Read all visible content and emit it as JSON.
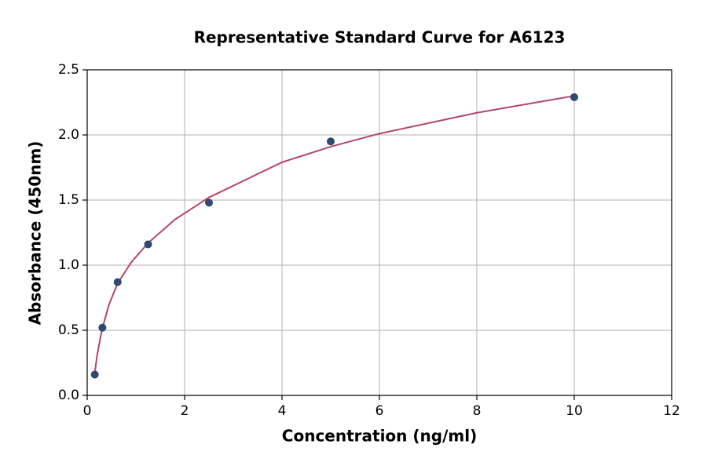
{
  "chart_data": {
    "type": "scatter",
    "title": "Representative Standard Curve for A6123",
    "x_label": "Concentration (ng/ml)",
    "y_label": "Absorbance (450nm)",
    "x": [
      0.156,
      0.3125,
      0.625,
      1.25,
      2.5,
      5,
      10
    ],
    "values": [
      0.16,
      0.52,
      0.87,
      1.16,
      1.48,
      1.95,
      2.29
    ],
    "color": "#2d4a70",
    "fit": {
      "color": "#b5446a",
      "x": [
        0.156,
        0.2,
        0.3,
        0.45,
        0.625,
        0.9,
        1.25,
        1.8,
        2.5,
        3,
        4,
        5,
        6,
        8,
        10
      ],
      "y": [
        0.17,
        0.3,
        0.5,
        0.7,
        0.86,
        1.02,
        1.17,
        1.35,
        1.52,
        1.61,
        1.79,
        1.91,
        2.01,
        2.17,
        2.3
      ]
    },
    "xlim": [
      0,
      12
    ],
    "xticks": [
      0,
      2,
      4,
      6,
      8,
      10,
      12
    ],
    "ylim": [
      0,
      2.5
    ],
    "yticks": [
      {
        "value": 0,
        "label": "0.0"
      },
      0.5,
      {
        "value": 1,
        "label": "1.0"
      },
      1.5,
      {
        "value": 2,
        "label": "2.0"
      },
      2.5
    ],
    "grid": true
  }
}
